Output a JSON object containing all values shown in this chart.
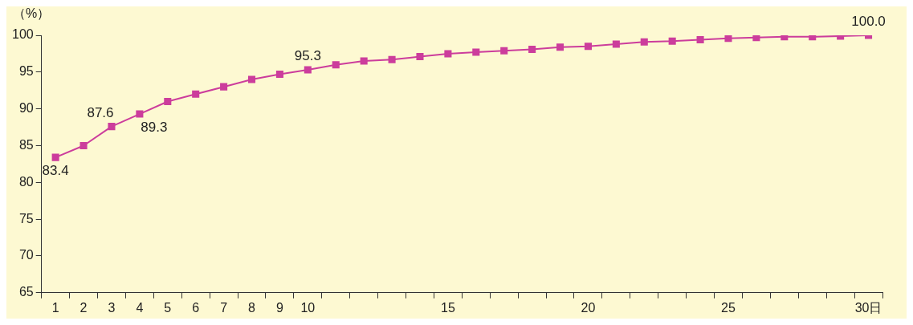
{
  "chart_data": {
    "type": "line",
    "ylabel": "（%）",
    "categories": [
      "1",
      "2",
      "3",
      "4",
      "5",
      "6",
      "7",
      "8",
      "9",
      "10",
      null,
      null,
      null,
      null,
      "15",
      null,
      null,
      null,
      null,
      "20",
      null,
      null,
      null,
      null,
      "25",
      null,
      null,
      null,
      null,
      "30日"
    ],
    "series": [
      {
        "color": "#cc3d9c",
        "values": [
          83.4,
          85.0,
          87.6,
          89.3,
          91.0,
          92.0,
          93.0,
          94.0,
          94.7,
          95.3,
          96.0,
          96.5,
          96.7,
          97.1,
          97.5,
          97.7,
          97.9,
          98.1,
          98.4,
          98.5,
          98.8,
          99.1,
          99.2,
          99.4,
          99.6,
          99.7,
          99.8,
          99.8,
          99.9,
          100.0
        ],
        "value_labels": [
          "83.4",
          null,
          "87.6",
          "89.3",
          null,
          null,
          null,
          null,
          null,
          "95.3",
          null,
          null,
          null,
          null,
          null,
          null,
          null,
          null,
          null,
          null,
          null,
          null,
          null,
          null,
          null,
          null,
          null,
          null,
          null,
          "100.0"
        ]
      }
    ],
    "ylim": [
      65,
      100
    ],
    "yticks": [
      65,
      70,
      75,
      80,
      85,
      90,
      95,
      100
    ],
    "grid": false,
    "legend": false,
    "marker": "square",
    "line_style": "solid"
  }
}
